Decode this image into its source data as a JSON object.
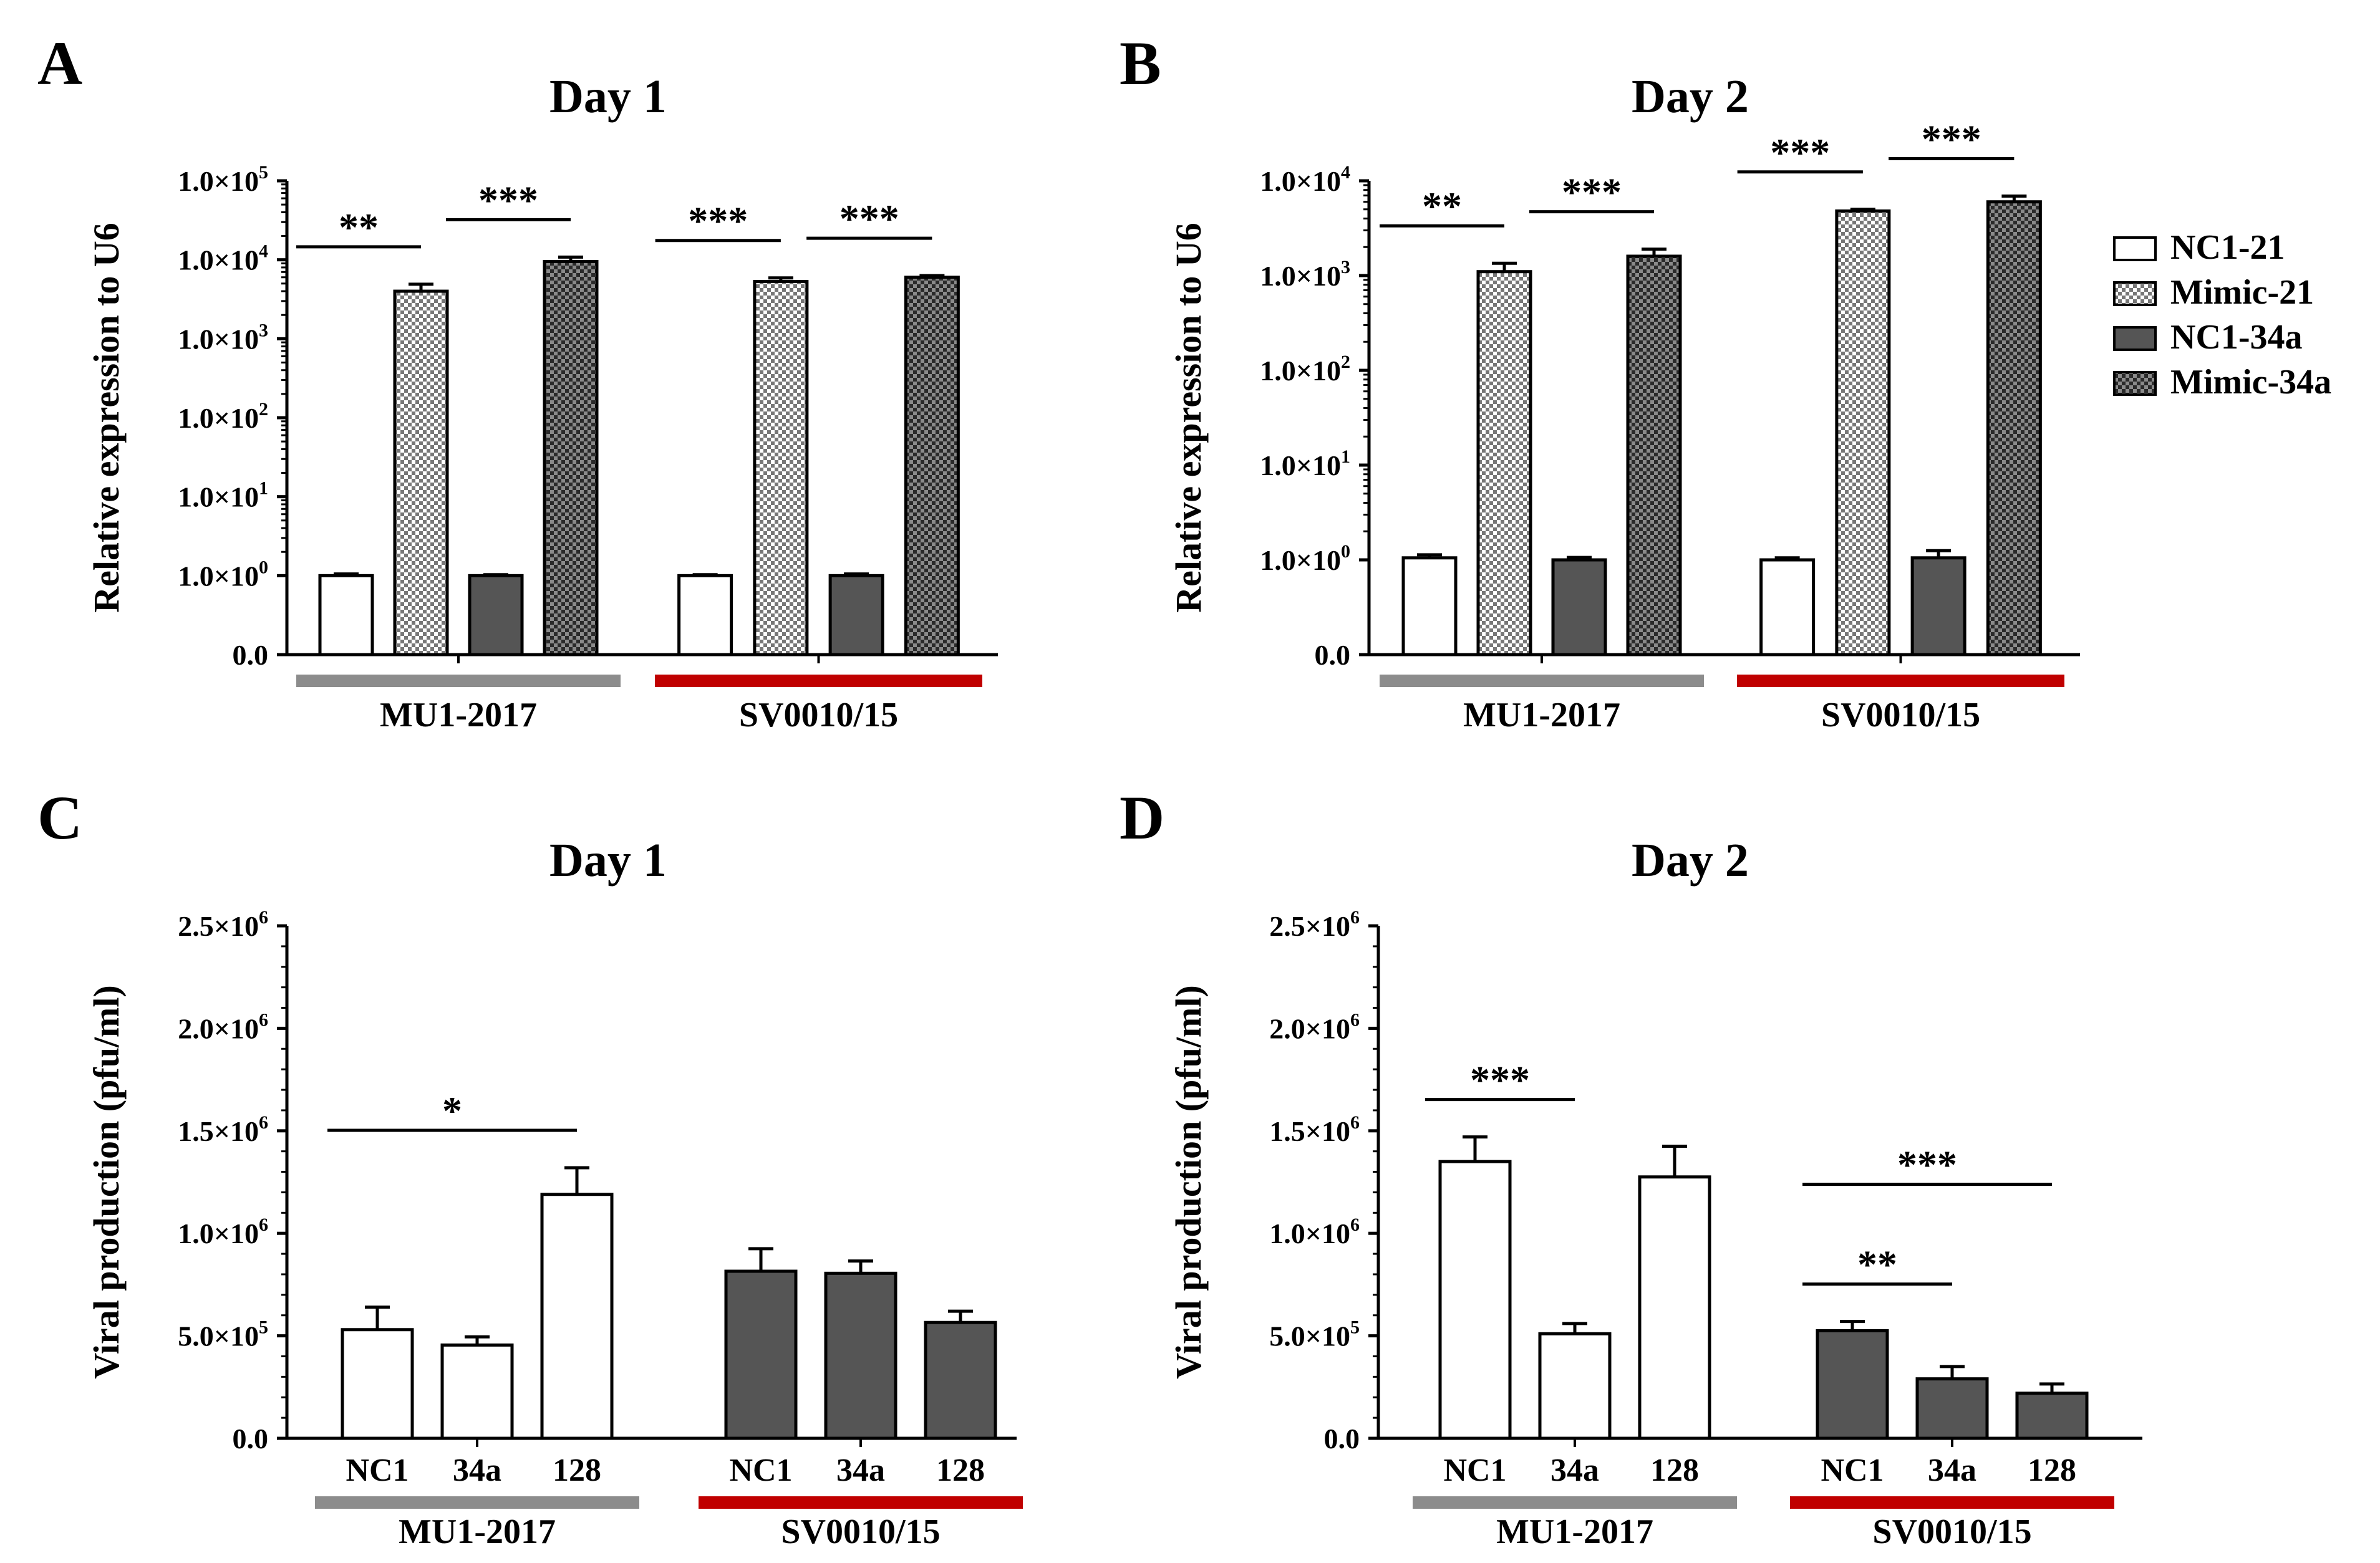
{
  "colors": {
    "white": "#ffffff",
    "dark": "#555555",
    "gray_bar": "#8c8c8c",
    "red_bar": "#c00000",
    "black": "#000000"
  },
  "legend": [
    {
      "label": "NC1-21",
      "fill": "white"
    },
    {
      "label": "Mimic-21",
      "fill": "checker-light"
    },
    {
      "label": "NC1-34a",
      "fill": "dark"
    },
    {
      "label": "Mimic-34a",
      "fill": "checker-dark"
    }
  ],
  "chart_data": [
    {
      "panel": "A",
      "type": "bar",
      "title": "Day 1",
      "ylabel": "Relative expression to U6",
      "yscale": "log",
      "y_ticks": [
        {
          "mant": "0.0",
          "exp": ""
        },
        {
          "mant": "1.0×10",
          "exp": "0"
        },
        {
          "mant": "1.0×10",
          "exp": "1"
        },
        {
          "mant": "1.0×10",
          "exp": "2"
        },
        {
          "mant": "1.0×10",
          "exp": "3"
        },
        {
          "mant": "1.0×10",
          "exp": "4"
        },
        {
          "mant": "1.0×10",
          "exp": "5"
        }
      ],
      "groups": [
        "MU1-2017",
        "SV0010/15"
      ],
      "series": [
        {
          "name": "NC1-21",
          "values": [
            1.0,
            1.0
          ],
          "errors": [
            0.05,
            0.03
          ]
        },
        {
          "name": "Mimic-21",
          "values": [
            4000,
            5300
          ],
          "errors": [
            900,
            600
          ]
        },
        {
          "name": "NC1-34a",
          "values": [
            1.0,
            1.0
          ],
          "errors": [
            0.03,
            0.05
          ]
        },
        {
          "name": "Mimic-34a",
          "values": [
            9500,
            6000
          ],
          "errors": [
            1300,
            300
          ]
        }
      ],
      "significance": [
        {
          "group": 0,
          "from": 0,
          "to": 1,
          "label": "**"
        },
        {
          "group": 0,
          "from": 2,
          "to": 3,
          "label": "***"
        },
        {
          "group": 1,
          "from": 0,
          "to": 1,
          "label": "***"
        },
        {
          "group": 1,
          "from": 2,
          "to": 3,
          "label": "***"
        }
      ]
    },
    {
      "panel": "B",
      "type": "bar",
      "title": "Day 2",
      "ylabel": "Relative expression to U6",
      "yscale": "log",
      "y_ticks": [
        {
          "mant": "0.0",
          "exp": ""
        },
        {
          "mant": "1.0×10",
          "exp": "0"
        },
        {
          "mant": "1.0×10",
          "exp": "1"
        },
        {
          "mant": "1.0×10",
          "exp": "2"
        },
        {
          "mant": "1.0×10",
          "exp": "3"
        },
        {
          "mant": "1.0×10",
          "exp": "4"
        }
      ],
      "groups": [
        "MU1-2017",
        "SV0010/15"
      ],
      "series": [
        {
          "name": "NC1-21",
          "values": [
            1.05,
            1.0
          ],
          "errors": [
            0.08,
            0.05
          ]
        },
        {
          "name": "Mimic-21",
          "values": [
            1100,
            4800
          ],
          "errors": [
            250,
            200
          ]
        },
        {
          "name": "NC1-34a",
          "values": [
            1.0,
            1.05
          ],
          "errors": [
            0.06,
            0.2
          ]
        },
        {
          "name": "Mimic-34a",
          "values": [
            1600,
            6000
          ],
          "errors": [
            300,
            900
          ]
        }
      ],
      "significance": [
        {
          "group": 0,
          "from": 0,
          "to": 1,
          "label": "**"
        },
        {
          "group": 0,
          "from": 2,
          "to": 3,
          "label": "***"
        },
        {
          "group": 1,
          "from": 0,
          "to": 1,
          "label": "***"
        },
        {
          "group": 1,
          "from": 2,
          "to": 3,
          "label": "***"
        }
      ]
    },
    {
      "panel": "C",
      "type": "bar",
      "title": "Day 1",
      "ylabel": "Viral production (pfu/ml)",
      "yscale": "linear",
      "ylim": [
        0,
        2500000
      ],
      "y_ticks": [
        {
          "mant": "0.0",
          "exp": ""
        },
        {
          "mant": "5.0×10",
          "exp": "5"
        },
        {
          "mant": "1.0×10",
          "exp": "6"
        },
        {
          "mant": "1.5×10",
          "exp": "6"
        },
        {
          "mant": "2.0×10",
          "exp": "6"
        },
        {
          "mant": "2.5×10",
          "exp": "6"
        }
      ],
      "categories": [
        "NC1",
        "34a",
        "128"
      ],
      "groups": [
        "MU1-2017",
        "SV0010/15"
      ],
      "group_fill": [
        "white",
        "dark"
      ],
      "values": [
        [
          530000,
          455000,
          1190000
        ],
        [
          815000,
          805000,
          565000
        ]
      ],
      "errors": [
        [
          110000,
          40000,
          130000
        ],
        [
          110000,
          60000,
          55000
        ]
      ],
      "significance": [
        {
          "group": 0,
          "from": 0,
          "to": 2,
          "label": "*"
        }
      ]
    },
    {
      "panel": "D",
      "type": "bar",
      "title": "Day 2",
      "ylabel": "Viral production (pfu/ml)",
      "yscale": "linear",
      "ylim": [
        0,
        2500000
      ],
      "y_ticks": [
        {
          "mant": "0.0",
          "exp": ""
        },
        {
          "mant": "5.0×10",
          "exp": "5"
        },
        {
          "mant": "1.0×10",
          "exp": "6"
        },
        {
          "mant": "1.5×10",
          "exp": "6"
        },
        {
          "mant": "2.0×10",
          "exp": "6"
        },
        {
          "mant": "2.5×10",
          "exp": "6"
        }
      ],
      "categories": [
        "NC1",
        "34a",
        "128"
      ],
      "groups": [
        "MU1-2017",
        "SV0010/15"
      ],
      "group_fill": [
        "white",
        "dark"
      ],
      "values": [
        [
          1350000,
          510000,
          1275000
        ],
        [
          525000,
          290000,
          220000
        ]
      ],
      "errors": [
        [
          120000,
          50000,
          150000
        ],
        [
          45000,
          60000,
          45000
        ]
      ],
      "significance": [
        {
          "group": 0,
          "from": 0,
          "to": 1,
          "label": "***"
        },
        {
          "group": 1,
          "from": 0,
          "to": 1,
          "label": "**"
        },
        {
          "group": 1,
          "from": 0,
          "to": 2,
          "label": "***"
        }
      ]
    }
  ]
}
